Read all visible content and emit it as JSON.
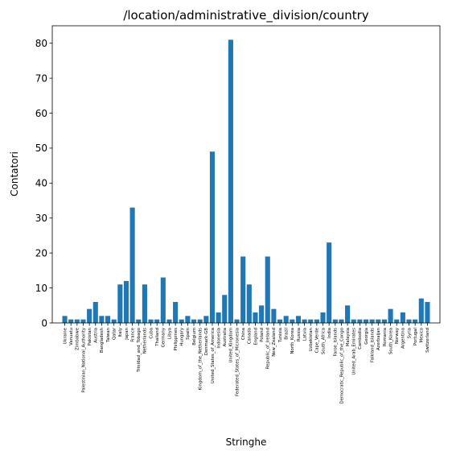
{
  "chart_data": {
    "type": "bar",
    "title": "/location/administrative_division/country",
    "xlabel": "Stringhe",
    "ylabel": "Contatori",
    "ylim": [
      0,
      85
    ],
    "yticks": [
      0,
      10,
      20,
      30,
      40,
      50,
      60,
      70,
      80
    ],
    "grid": false,
    "bar_color": "#1f77b4",
    "categories": [
      "Ukraine",
      "Vanuatu",
      "Zimbabwe",
      "Palestinian_National_Authority",
      "Pakistan",
      "Austria",
      "Bangladesh",
      "Taiwan",
      "Qatar",
      "Italy",
      "Japan",
      "France",
      "Trinidad_and_Tobago",
      "Netherlands",
      "Cuba",
      "Thailand",
      "Germany",
      "Libya",
      "Philippines",
      "Hungary",
      "Spain",
      "Belgium",
      "Kingdom_of_the_Netherlands",
      "Denmark-GB",
      "United_States_of_America",
      "Indonesia",
      "Australia",
      "United_Kingdom",
      "Federated_States_of_Micronesia",
      "China",
      "Canada",
      "England",
      "Poland",
      "Republic_of_Ireland",
      "New_Zealand",
      "Tunisia",
      "Brazil",
      "North_Korea",
      "Russia",
      "Latvia",
      "Uzbekistan",
      "Cape_Verde",
      "South_Africa",
      "India",
      "Faroe_Islands",
      "Democratic_Republic_of_the_Congo",
      "Malaysia",
      "United_Arab_Emirates",
      "Cambodia",
      "Georgia",
      "Falkland_Islands",
      "Azerbaijan",
      "Romania",
      "South_Korea",
      "Norway",
      "Argentina",
      "Syria",
      "Portugal",
      "Mexico",
      "Switzerland"
    ],
    "values": [
      2,
      1,
      1,
      1,
      4,
      6,
      2,
      2,
      1,
      11,
      12,
      33,
      1,
      11,
      1,
      1,
      13,
      1,
      6,
      1,
      2,
      1,
      1,
      2,
      49,
      3,
      8,
      81,
      1,
      19,
      11,
      3,
      5,
      19,
      4,
      1,
      2,
      1,
      2,
      1,
      1,
      1,
      3,
      23,
      1,
      1,
      5,
      1,
      1,
      1,
      1,
      1,
      1,
      4,
      1,
      3,
      1,
      1,
      7,
      6
    ]
  }
}
